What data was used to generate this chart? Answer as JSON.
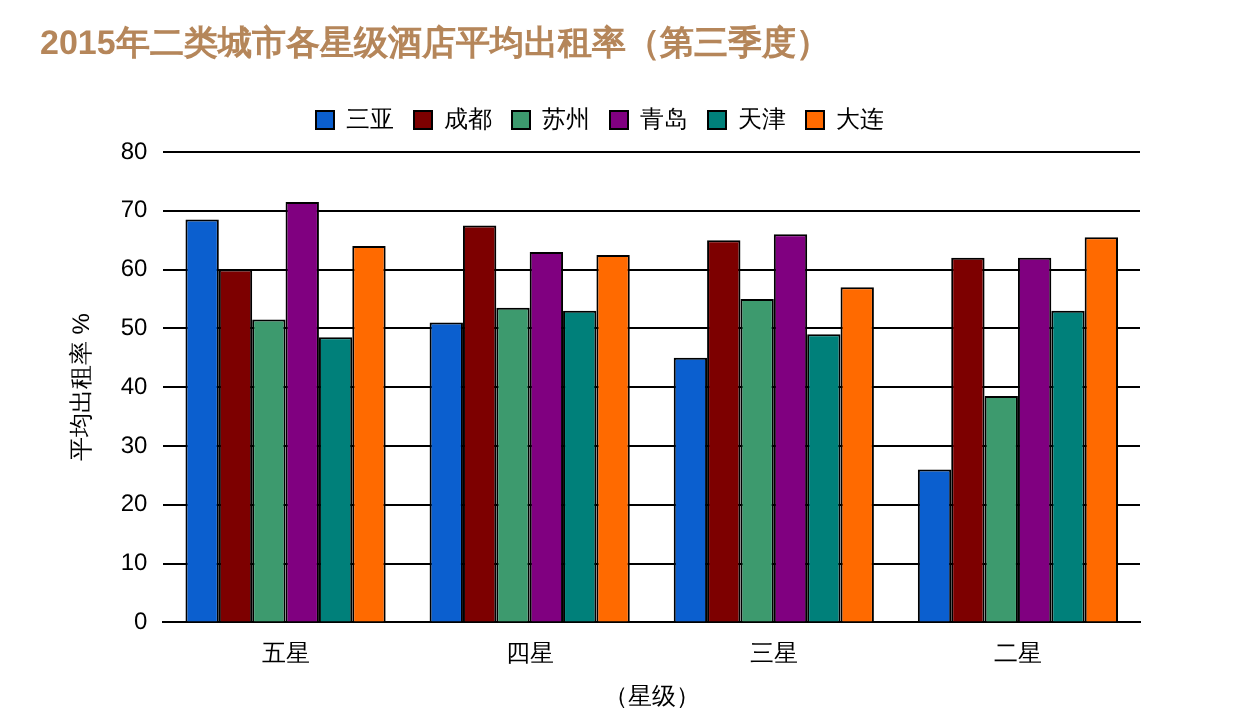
{
  "chart_data": {
    "type": "bar",
    "title": "2015年二类城市各星级酒店平均出租率（第三季度）",
    "xlabel": "（星级）",
    "ylabel": "平均出租率 %",
    "categories": [
      "五星",
      "四星",
      "三星",
      "二星"
    ],
    "series": [
      {
        "name": "三亚",
        "color": "#0b5fcf",
        "values": [
          68.5,
          51,
          45,
          26
        ]
      },
      {
        "name": "成都",
        "color": "#7d0000",
        "values": [
          60,
          67.5,
          65,
          62
        ]
      },
      {
        "name": "苏州",
        "color": "#3d9a6e",
        "values": [
          51.5,
          53.5,
          55,
          38.5
        ]
      },
      {
        "name": "青岛",
        "color": "#800080",
        "values": [
          71.5,
          63,
          66,
          62
        ]
      },
      {
        "name": "天津",
        "color": "#00807a",
        "values": [
          48.5,
          53,
          49,
          53
        ]
      },
      {
        "name": "大连",
        "color": "#ff6a00",
        "values": [
          64,
          62.5,
          57,
          65.5
        ]
      }
    ],
    "ylim": [
      0,
      80
    ],
    "yticks": [
      0,
      10,
      20,
      30,
      40,
      50,
      60,
      70,
      80
    ],
    "grid": "y",
    "legend": "top"
  }
}
